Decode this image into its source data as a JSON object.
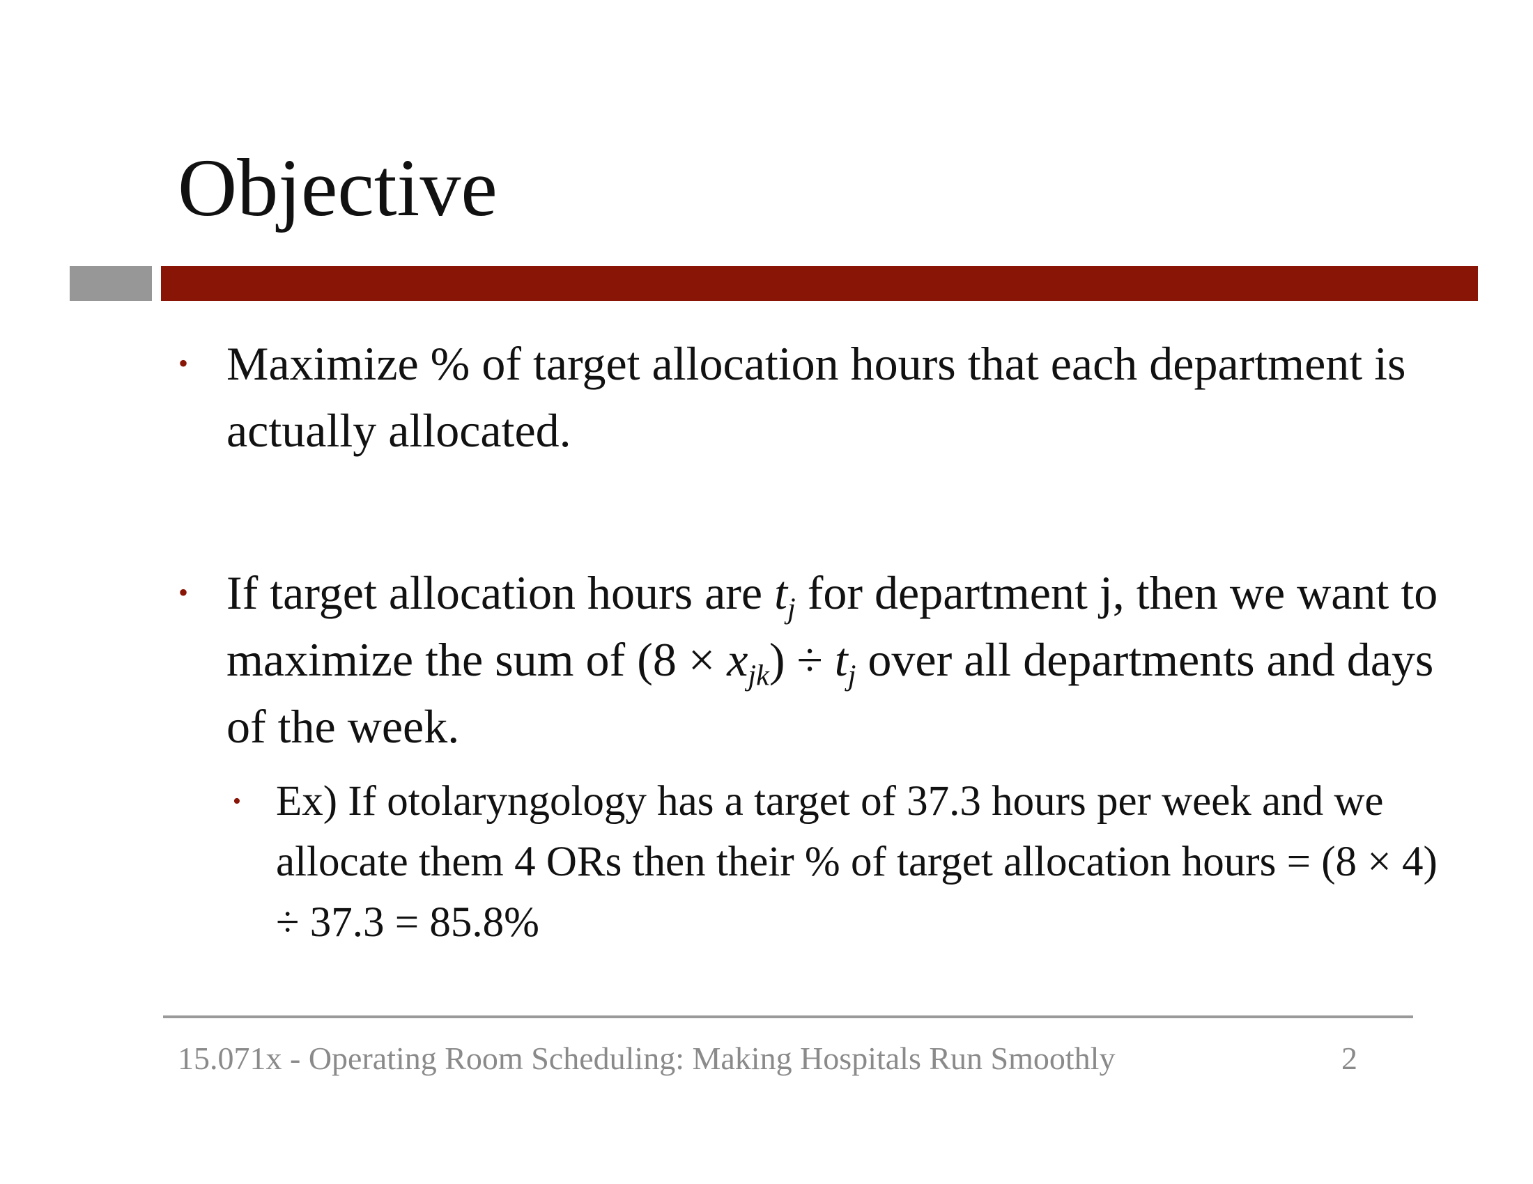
{
  "slide": {
    "title": "Objective",
    "bullets": [
      {
        "text": "Maximize % of target allocation hours that each department is actually allocated."
      },
      {
        "part1": "If target allocation hours are ",
        "var_t": "t",
        "sub_j": "j",
        "part2": " for department j, then we want to maximize the sum of (8 × ",
        "var_x": "x",
        "sub_jk": "jk",
        "part3": ") ÷ ",
        "var_t2": "t",
        "sub_j2": "j",
        "part4": " over all departments and days of the week.",
        "sub_bullets": [
          {
            "text": "Ex) If otolaryngology has a target of 37.3 hours per week and we allocate them 4 ORs then their % of target allocation hours = (8 × 4) ÷ 37.3 = 85.8%"
          }
        ]
      }
    ],
    "bullet_glyph": "•"
  },
  "footer": {
    "text": "15.071x - Operating Room Scheduling: Making Hospitals Run Smoothly",
    "page_number": "2"
  },
  "colors": {
    "accent_red": "#891507",
    "accent_gray": "#979797",
    "footer_gray": "#8a8a8a"
  }
}
